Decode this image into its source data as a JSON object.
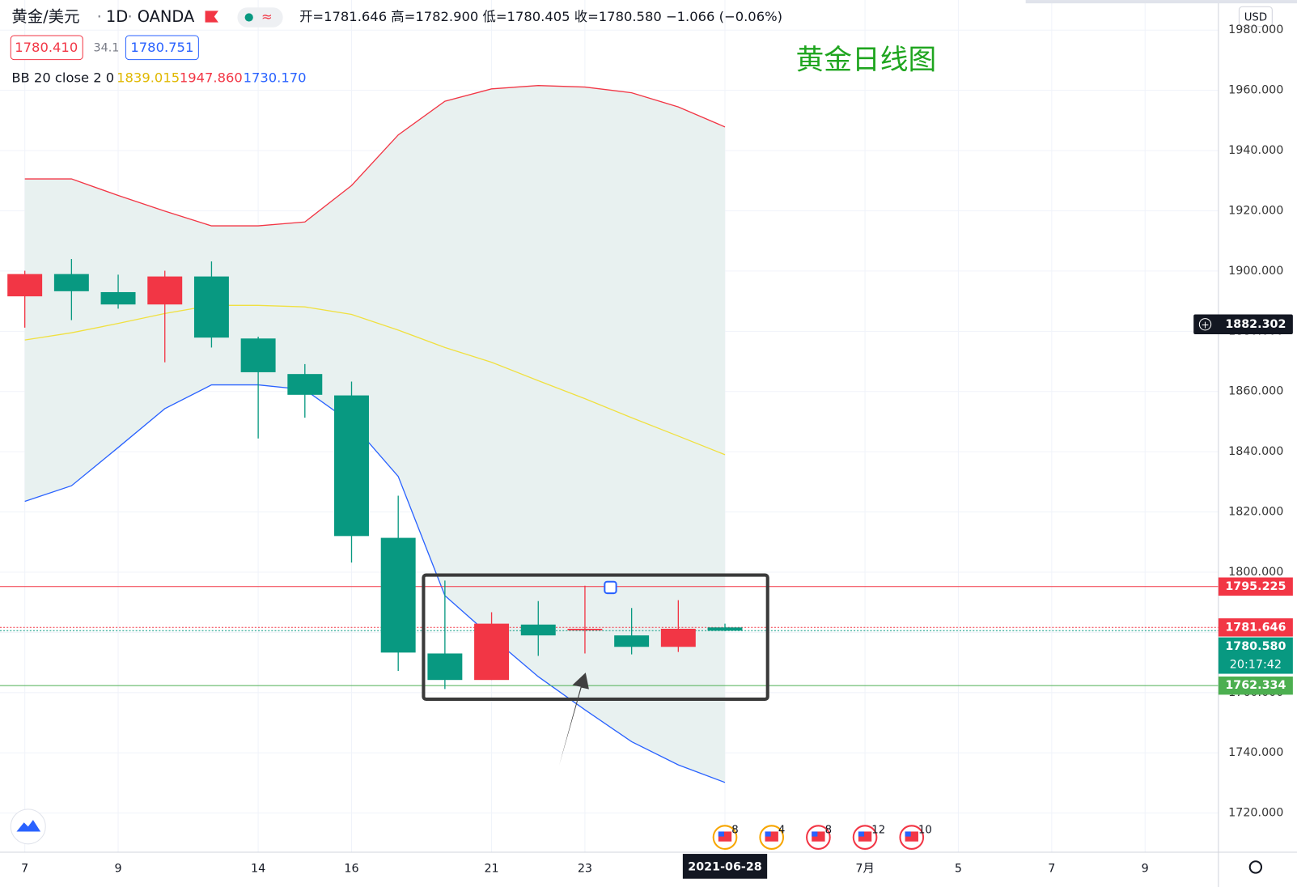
{
  "header": {
    "symbol": "黄金/美元",
    "interval": "1D",
    "source": "OANDA",
    "ohlc": "开=1781.646 高=1782.900 低=1780.405 收=1780.580 −1.066 (−0.06%)",
    "sell": "1780.410",
    "spread": "34.1",
    "buy": "1780.751",
    "indicator": "BB 20 close 2 0",
    "indicator_values": [
      "1839.015",
      "1947.860",
      "1730.170"
    ]
  },
  "chart_data": {
    "type": "candlestick",
    "annotation": "黄金日线图",
    "currency": "USD",
    "categories": [
      "7",
      null,
      "9",
      null,
      null,
      "14",
      null,
      "16",
      null,
      null,
      "21",
      null,
      "23",
      null,
      null,
      "2021-06-28",
      null,
      null,
      "7月",
      null,
      "5",
      null,
      "7",
      null,
      "9"
    ],
    "open": [
      1899.0,
      1893.3,
      1888.9,
      1898.2,
      1877.9,
      1866.4,
      1858.9,
      1812.0,
      1773.3,
      1764.2,
      1782.9,
      1779.0,
      1781.2,
      1775.2,
      1781.2,
      1781.646,
      null,
      null,
      null,
      null,
      null,
      null,
      null,
      null,
      null
    ],
    "high": [
      1900.1,
      1904.0,
      1898.8,
      1900.1,
      1903.2,
      1878.2,
      1869.1,
      1863.3,
      1825.4,
      1797.2,
      1786.7,
      1790.4,
      1795.5,
      1788.1,
      1790.7,
      1782.9,
      null,
      null,
      null,
      null,
      null,
      null,
      null,
      null,
      null
    ],
    "low": [
      1881.2,
      1883.7,
      1887.5,
      1869.7,
      1874.6,
      1844.4,
      1851.3,
      1803.2,
      1767.2,
      1761.2,
      1764.2,
      1772.2,
      1773.0,
      1772.7,
      1773.5,
      1780.405,
      null,
      null,
      null,
      null,
      null,
      null,
      null,
      null,
      null
    ],
    "close": [
      1891.6,
      1899.0,
      1893.0,
      1888.9,
      1898.2,
      1877.6,
      1865.8,
      1858.7,
      1811.4,
      1773.0,
      1764.2,
      1782.6,
      1780.7,
      1779.0,
      1775.2,
      1780.58,
      null,
      null,
      null,
      null,
      null,
      null,
      null,
      null,
      null
    ],
    "colors": [
      "#f23645",
      "#089981",
      "#089981",
      "#f23645",
      "#089981",
      "#089981",
      "#089981",
      "#089981",
      "#089981",
      "#089981",
      "#f23645",
      "#089981",
      "#f23645",
      "#089981",
      "#f23645",
      "#089981",
      null,
      null,
      null,
      null,
      null,
      null,
      null,
      null,
      null
    ],
    "series": [
      {
        "name": "upper",
        "color": "#f23645",
        "values": [
          1930.6,
          1930.6,
          1925.1,
          1919.9,
          1915.0,
          1915.0,
          1916.3,
          1928.4,
          1945.2,
          1956.4,
          1960.5,
          1961.6,
          1961.1,
          1959.2,
          1954.5,
          1947.86,
          null,
          null,
          null,
          null,
          null,
          null,
          null,
          null,
          null
        ]
      },
      {
        "name": "basis",
        "color": "#f0e040",
        "values": [
          1877.1,
          1879.5,
          1882.6,
          1885.9,
          1888.6,
          1888.6,
          1888.1,
          1885.6,
          1880.4,
          1874.6,
          1869.7,
          1863.6,
          1857.6,
          1851.3,
          1845.2,
          1839.015,
          null,
          null,
          null,
          null,
          null,
          null,
          null,
          null,
          null
        ]
      },
      {
        "name": "lower",
        "color": "#2962ff",
        "values": [
          1823.5,
          1828.7,
          1841.4,
          1854.3,
          1862.2,
          1862.2,
          1860.6,
          1849.6,
          1831.8,
          1792.2,
          1778.5,
          1765.3,
          1754.3,
          1743.7,
          1736.0,
          1730.17,
          null,
          null,
          null,
          null,
          null,
          null,
          null,
          null,
          null
        ]
      }
    ],
    "band_fill": "#e8f1f0",
    "ylim": [
      1707,
      1990
    ],
    "yticks": [
      {
        "value": 1720,
        "label": "1720.000"
      },
      {
        "value": 1740,
        "label": "1740.000"
      },
      {
        "value": 1760,
        "label": "1760.000"
      },
      {
        "value": 1780,
        "label": "1780.000"
      },
      {
        "value": 1800,
        "label": "1800.000"
      },
      {
        "value": 1820,
        "label": "1820.000"
      },
      {
        "value": 1840,
        "label": "1840.000"
      },
      {
        "value": 1860,
        "label": "1860.000"
      },
      {
        "value": 1880,
        "label": "1880.000"
      },
      {
        "value": 1900,
        "label": "1900.000"
      },
      {
        "value": 1920,
        "label": "1920.000"
      },
      {
        "value": 1940,
        "label": "1940.000"
      },
      {
        "value": 1960,
        "label": "1960.000"
      },
      {
        "value": 1980,
        "label": "1980.000"
      }
    ],
    "grid": true,
    "price_lines": [
      {
        "value": 1795.225,
        "label": "1795.225",
        "color": "#f23645",
        "style": "solid"
      },
      {
        "value": 1781.646,
        "label": "1781.646",
        "color": "#f23645",
        "style": "dotted"
      },
      {
        "value": 1780.58,
        "label": "1780.580",
        "color": "#089981",
        "style": "dotted"
      },
      {
        "value": 1762.334,
        "label": "1762.334",
        "color": "#4caf50",
        "style": "solid"
      }
    ],
    "countdown": "20:17:42",
    "crosshair_price": {
      "value": 1882.302,
      "label": "1882.302"
    },
    "events": [
      8,
      4,
      8,
      12,
      10
    ]
  }
}
